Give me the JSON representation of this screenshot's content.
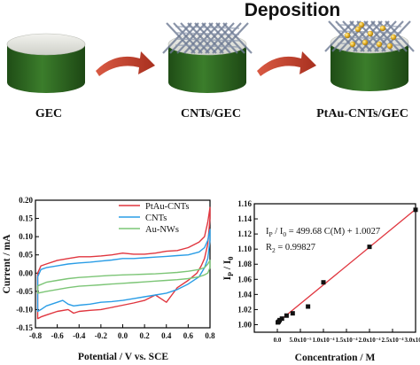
{
  "scheme": {
    "title": "Deposition",
    "steps": [
      {
        "label": "GEC"
      },
      {
        "label": "CNTs/GEC"
      },
      {
        "label": "PtAu-CNTs/GEC"
      }
    ],
    "colors": {
      "electrode_side": "#2f6a22",
      "electrode_top": "#e7e8e2",
      "arrow": "#c0412d",
      "nanotube_mesh": "#6d7a93",
      "particles": "#e3b224"
    }
  },
  "chart_data": [
    {
      "type": "line",
      "xlabel": "Potential / V vs. SCE",
      "ylabel": "Current / mA",
      "xlim": [
        -0.8,
        0.8
      ],
      "ylim": [
        -0.15,
        0.2
      ],
      "xticks": [
        "-0.8",
        "-0.6",
        "-0.4",
        "-0.2",
        "0.0",
        "0.2",
        "0.4",
        "0.6",
        "0.8"
      ],
      "yticks": [
        "-0.15",
        "-0.10",
        "-0.05",
        "0.00",
        "0.05",
        "0.10",
        "0.15",
        "0.20"
      ],
      "legend_position": "top-right",
      "series": [
        {
          "name": "PtAu-CNTs",
          "color": "#e0363f",
          "x": [
            -0.78,
            -0.75,
            -0.7,
            -0.6,
            -0.5,
            -0.4,
            -0.3,
            -0.2,
            -0.1,
            0.0,
            0.1,
            0.2,
            0.3,
            0.4,
            0.5,
            0.6,
            0.7,
            0.75,
            0.78,
            0.8,
            0.8,
            0.78,
            0.75,
            0.72,
            0.68,
            0.6,
            0.5,
            0.45,
            0.4,
            0.35,
            0.3,
            0.2,
            0.1,
            0.0,
            -0.1,
            -0.2,
            -0.3,
            -0.4,
            -0.45,
            -0.5,
            -0.6,
            -0.7,
            -0.75,
            -0.78
          ],
          "y": [
            0.0,
            0.02,
            0.025,
            0.035,
            0.04,
            0.045,
            0.045,
            0.047,
            0.05,
            0.055,
            0.052,
            0.052,
            0.055,
            0.06,
            0.062,
            0.07,
            0.085,
            0.1,
            0.14,
            0.18,
            0.15,
            0.08,
            0.04,
            0.02,
            0.0,
            -0.02,
            -0.04,
            -0.06,
            -0.08,
            -0.07,
            -0.06,
            -0.075,
            -0.082,
            -0.088,
            -0.094,
            -0.1,
            -0.102,
            -0.105,
            -0.11,
            -0.1,
            -0.105,
            -0.115,
            -0.12,
            -0.125
          ]
        },
        {
          "name": "CNTs",
          "color": "#2a9de6",
          "x": [
            -0.78,
            -0.75,
            -0.7,
            -0.6,
            -0.5,
            -0.4,
            -0.3,
            -0.2,
            -0.1,
            0.0,
            0.1,
            0.2,
            0.3,
            0.4,
            0.5,
            0.6,
            0.7,
            0.75,
            0.78,
            0.8,
            0.8,
            0.78,
            0.75,
            0.7,
            0.6,
            0.5,
            0.4,
            0.3,
            0.2,
            0.1,
            0.0,
            -0.1,
            -0.2,
            -0.3,
            -0.4,
            -0.45,
            -0.5,
            -0.55,
            -0.6,
            -0.7,
            -0.75,
            -0.78
          ],
          "y": [
            -0.01,
            0.01,
            0.015,
            0.02,
            0.025,
            0.028,
            0.03,
            0.033,
            0.036,
            0.04,
            0.04,
            0.042,
            0.044,
            0.046,
            0.048,
            0.05,
            0.058,
            0.07,
            0.09,
            0.12,
            0.09,
            0.04,
            0.015,
            -0.01,
            -0.03,
            -0.045,
            -0.055,
            -0.06,
            -0.065,
            -0.07,
            -0.075,
            -0.078,
            -0.08,
            -0.085,
            -0.088,
            -0.09,
            -0.085,
            -0.075,
            -0.08,
            -0.09,
            -0.1,
            -0.105
          ]
        },
        {
          "name": "Au-NWs",
          "color": "#7cc576",
          "x": [
            -0.78,
            -0.7,
            -0.6,
            -0.5,
            -0.4,
            -0.3,
            -0.2,
            -0.1,
            0.0,
            0.1,
            0.2,
            0.3,
            0.4,
            0.5,
            0.6,
            0.7,
            0.75,
            0.78,
            0.8,
            0.8,
            0.78,
            0.75,
            0.7,
            0.6,
            0.5,
            0.4,
            0.3,
            0.2,
            0.1,
            0.0,
            -0.1,
            -0.2,
            -0.3,
            -0.4,
            -0.5,
            -0.6,
            -0.7,
            -0.78
          ],
          "y": [
            -0.035,
            -0.025,
            -0.02,
            -0.015,
            -0.012,
            -0.01,
            -0.008,
            -0.006,
            -0.005,
            -0.004,
            -0.003,
            -0.002,
            0.0,
            0.002,
            0.005,
            0.01,
            0.015,
            0.025,
            0.035,
            0.015,
            0.0,
            -0.005,
            -0.01,
            -0.015,
            -0.018,
            -0.02,
            -0.022,
            -0.024,
            -0.026,
            -0.028,
            -0.03,
            -0.032,
            -0.034,
            -0.036,
            -0.04,
            -0.045,
            -0.05,
            -0.055
          ]
        }
      ]
    },
    {
      "type": "scatter",
      "xlabel": "Concentration / M",
      "ylabel": "Ip / I0",
      "xlim": [
        -5e-05,
        0.0003
      ],
      "ylim": [
        0.99,
        1.16
      ],
      "xticks": [
        "0.0",
        "5.0x10⁻⁵",
        "1.0x10⁻⁴",
        "1.5x10⁻⁴",
        "2.0x10⁻⁴",
        "2.5x10⁻⁴",
        "3.0x10⁻⁴"
      ],
      "xtick_values": [
        0,
        5e-05,
        0.0001,
        0.00015,
        0.0002,
        0.00025,
        0.0003
      ],
      "yticks": [
        "1.00",
        "1.02",
        "1.04",
        "1.06",
        "1.08",
        "1.10",
        "1.12",
        "1.14",
        "1.16"
      ],
      "annotation": [
        "I",
        "P",
        " / I",
        "0",
        " = 499.68 C(M) + 1.0027"
      ],
      "r2_text": [
        "R",
        "2",
        " = 0.99827"
      ],
      "x": [
        1e-06,
        3e-06,
        5e-06,
        1e-05,
        2e-05,
        3.33e-05,
        6.66e-05,
        0.0001,
        0.0002,
        0.0003
      ],
      "y": [
        1.003,
        1.004,
        1.006,
        1.008,
        1.012,
        1.015,
        1.024,
        1.056,
        1.103,
        1.152
      ],
      "fit": {
        "slope": 499.68,
        "intercept": 1.0027,
        "color": "#e0363f"
      }
    }
  ]
}
